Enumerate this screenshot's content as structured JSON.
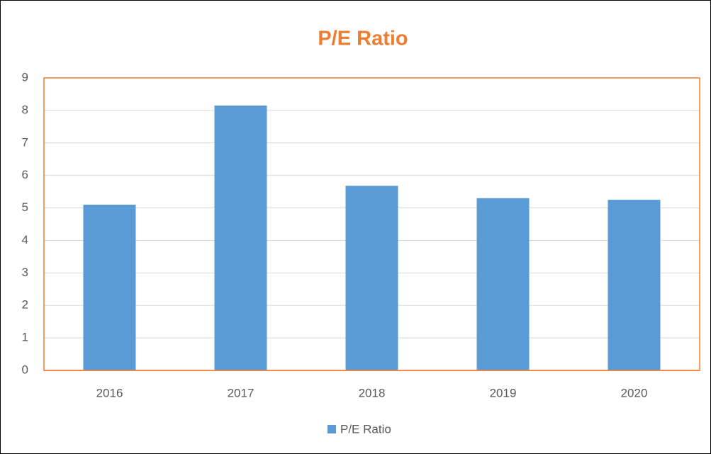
{
  "chart_data": {
    "type": "bar",
    "title": "P/E Ratio",
    "categories": [
      "2016",
      "2017",
      "2018",
      "2019",
      "2020"
    ],
    "series": [
      {
        "name": "P/E Ratio",
        "color": "#5b9bd5",
        "values": [
          5.1,
          8.15,
          5.68,
          5.3,
          5.25
        ]
      }
    ],
    "ylim": [
      0,
      9
    ],
    "yticks": [
      0,
      1,
      2,
      3,
      4,
      5,
      6,
      7,
      8,
      9
    ],
    "grid": true,
    "legend": "bottom",
    "title_color": "#ed7d31",
    "frame_color": "#ed7d31"
  }
}
